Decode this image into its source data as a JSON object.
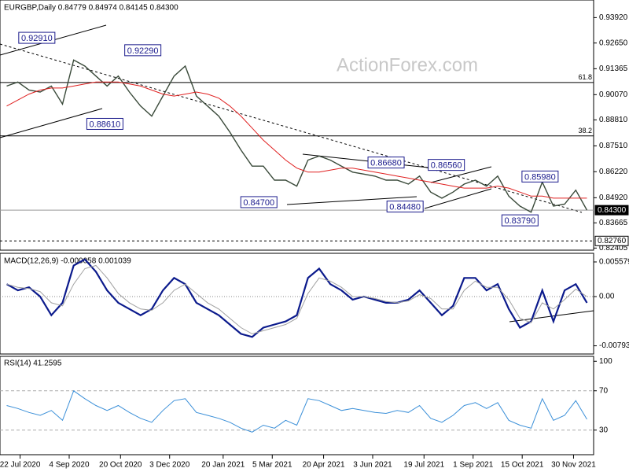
{
  "chart_data": [
    {
      "type": "line",
      "title": "EURGBP,Daily  0.84779 0.84974 0.84145 0.84300",
      "watermark": "ActionForex.com",
      "x": [
        "10 Jul 2020",
        "20 Jul 2020",
        "30 Jul 2020",
        "9 Aug 2020",
        "19 Aug 2020",
        "29 Aug 2020",
        "8 Sep 2020",
        "18 Sep 2020",
        "28 Sep 2020",
        "8 Oct 2020",
        "18 Oct 2020",
        "28 Oct 2020",
        "7 Nov 2020",
        "17 Nov 2020",
        "27 Nov 2020",
        "7 Dec 2020",
        "17 Dec 2020",
        "27 Dec 2020",
        "6 Jan 2021",
        "16 Jan 2021",
        "26 Jan 2021",
        "5 Feb 2021",
        "15 Feb 2021",
        "25 Feb 2021",
        "7 Mar 2021",
        "17 Mar 2021",
        "27 Mar 2021",
        "6 Apr 2021",
        "16 Apr 2021",
        "26 Apr 2021",
        "6 May 2021",
        "16 May 2021",
        "26 May 2021",
        "5 Jun 2021",
        "15 Jun 2021",
        "25 Jun 2021",
        "5 Jul 2021",
        "15 Jul 2021",
        "25 Jul 2021",
        "4 Aug 2021",
        "14 Aug 2021",
        "24 Aug 2021",
        "3 Sep 2021",
        "13 Sep 2021",
        "23 Sep 2021",
        "3 Oct 2021",
        "13 Oct 2021",
        "23 Oct 2021",
        "2 Nov 2021",
        "12 Nov 2021",
        "22 Nov 2021",
        "2 Dec 2021",
        "12 Dec 2021"
      ],
      "series": [
        {
          "name": "EURGBP",
          "color": "#3a4a3a",
          "values": [
            0.905,
            0.907,
            0.903,
            0.902,
            0.905,
            0.896,
            0.918,
            0.915,
            0.91,
            0.905,
            0.91,
            0.902,
            0.895,
            0.89,
            0.9,
            0.91,
            0.915,
            0.9,
            0.895,
            0.89,
            0.882,
            0.873,
            0.865,
            0.865,
            0.858,
            0.858,
            0.855,
            0.868,
            0.87,
            0.868,
            0.865,
            0.862,
            0.861,
            0.86,
            0.858,
            0.858,
            0.856,
            0.86,
            0.852,
            0.849,
            0.852,
            0.856,
            0.858,
            0.855,
            0.86,
            0.85,
            0.845,
            0.842,
            0.857,
            0.845,
            0.846,
            0.853,
            0.843
          ]
        },
        {
          "name": "MA",
          "color": "#e02020",
          "values": [
            0.895,
            0.898,
            0.901,
            0.903,
            0.904,
            0.904,
            0.905,
            0.906,
            0.907,
            0.907,
            0.907,
            0.906,
            0.905,
            0.903,
            0.901,
            0.9,
            0.901,
            0.902,
            0.901,
            0.899,
            0.895,
            0.89,
            0.884,
            0.878,
            0.873,
            0.868,
            0.864,
            0.862,
            0.862,
            0.863,
            0.864,
            0.864,
            0.863,
            0.862,
            0.861,
            0.86,
            0.859,
            0.858,
            0.857,
            0.856,
            0.855,
            0.854,
            0.854,
            0.854,
            0.855,
            0.854,
            0.852,
            0.85,
            0.85,
            0.849,
            0.849,
            0.849,
            0.849
          ]
        }
      ],
      "xlim": [
        "4 Jul 2020",
        "18 Dec 2021"
      ],
      "xticks": [
        "22 Jul 2020",
        "4 Sep 2020",
        "20 Oct 2020",
        "3 Dec 2020",
        "20 Jan 2021",
        "5 Mar 2021",
        "20 Apr 2021",
        "3 Jun 2021",
        "19 Jul 2021",
        "1 Sep 2021",
        "15 Oct 2021",
        "30 Nov 2021"
      ],
      "ylim": [
        0.823,
        0.948
      ],
      "yticks": [
        {
          "value": 0.9392,
          "label": "0.93920"
        },
        {
          "value": 0.9265,
          "label": "0.92650"
        },
        {
          "value": 0.91365,
          "label": "0.91365"
        },
        {
          "value": 0.9007,
          "label": "0.90070"
        },
        {
          "value": 0.8881,
          "label": "0.88810"
        },
        {
          "value": 0.8751,
          "label": "0.87510"
        },
        {
          "value": 0.8622,
          "label": "0.86220"
        },
        {
          "value": 0.8492,
          "label": "0.84920"
        },
        {
          "value": 0.83665,
          "label": "0.83665"
        },
        {
          "value": 0.82405,
          "label": "0.82405"
        }
      ],
      "levels": [
        {
          "value": 0.843,
          "label": "0.84300",
          "style": "current"
        },
        {
          "value": 0.8276,
          "label": "0.82760",
          "style": "support"
        }
      ],
      "fib_levels": [
        {
          "value": 0.9068,
          "label": "61.8"
        },
        {
          "value": 0.8801,
          "label": "38.2"
        }
      ],
      "annotations": [
        {
          "date": "6 Aug 2020",
          "value": 0.9291,
          "label": "0.92910"
        },
        {
          "date": "9 Nov 2020",
          "value": 0.9229,
          "label": "0.92290"
        },
        {
          "date": "6 Oct 2020",
          "value": 0.8861,
          "label": "0.88610"
        },
        {
          "date": "15 Jun 2021",
          "value": 0.8668,
          "label": "0.86680"
        },
        {
          "date": "8 Aug 2021",
          "value": 0.8656,
          "label": "0.86560"
        },
        {
          "date": "21 Feb 2021",
          "value": 0.847,
          "label": "0.84700"
        },
        {
          "date": "2 Jul 2021",
          "value": 0.8448,
          "label": "0.84480"
        },
        {
          "date": "13 Oct 2021",
          "value": 0.8379,
          "label": "0.83790"
        },
        {
          "date": "31 Oct 2021",
          "value": 0.8598,
          "label": "0.85980"
        }
      ]
    },
    {
      "type": "line",
      "title": "MACD(12,26,9) -0.000058 0.001039",
      "series": [
        {
          "name": "MACD",
          "color": "#0b1a8c",
          "values": [
            0.002,
            0.001,
            0.0015,
            0.0,
            -0.003,
            -0.001,
            0.005,
            0.006,
            0.004,
            0.001,
            -0.001,
            -0.002,
            -0.003,
            -0.002,
            0.001,
            0.003,
            0.002,
            -0.001,
            -0.002,
            -0.003,
            -0.0045,
            -0.006,
            -0.0065,
            -0.005,
            -0.0045,
            -0.004,
            -0.003,
            0.003,
            0.0045,
            0.002,
            0.001,
            -0.0005,
            0.0,
            -0.0005,
            -0.001,
            -0.001,
            -0.0005,
            0.001,
            -0.001,
            -0.003,
            -0.0015,
            0.003,
            0.003,
            0.001,
            0.002,
            -0.002,
            -0.005,
            -0.004,
            0.001,
            -0.004,
            0.001,
            0.002,
            -0.001
          ]
        },
        {
          "name": "Signal",
          "color": "#a0a0a0",
          "values": [
            0.002,
            0.0015,
            0.0013,
            0.0008,
            -0.001,
            -0.0015,
            0.002,
            0.0045,
            0.005,
            0.003,
            0.0005,
            -0.001,
            -0.002,
            -0.0022,
            -0.001,
            0.001,
            0.002,
            0.0005,
            -0.001,
            -0.002,
            -0.0035,
            -0.005,
            -0.006,
            -0.0055,
            -0.005,
            -0.0045,
            -0.0035,
            0.0005,
            0.003,
            0.0025,
            0.0015,
            0.0,
            0.0,
            -0.0003,
            -0.0008,
            -0.001,
            -0.0007,
            0.0003,
            -0.0003,
            -0.002,
            -0.002,
            0.001,
            0.0025,
            0.0015,
            0.0015,
            -0.0005,
            -0.0035,
            -0.0042,
            -0.001,
            -0.002,
            -0.0005,
            0.0012,
            0.0
          ]
        }
      ],
      "ylim": [
        -0.00925,
        0.00697
      ],
      "yticks": [
        0.005579,
        {
          "value": 0,
          "label": "0.00"
        },
        -0.007931
      ]
    },
    {
      "type": "line",
      "title": "RSI(14) 41.2595",
      "series": [
        {
          "name": "RSI",
          "color": "#3a8fd8",
          "values": [
            55,
            52,
            48,
            45,
            50,
            40,
            70,
            62,
            55,
            50,
            55,
            48,
            42,
            38,
            50,
            60,
            62,
            48,
            45,
            42,
            38,
            32,
            28,
            35,
            32,
            40,
            35,
            62,
            60,
            55,
            50,
            52,
            50,
            48,
            47,
            50,
            48,
            55,
            42,
            38,
            45,
            55,
            58,
            52,
            58,
            40,
            35,
            32,
            62,
            40,
            45,
            60,
            41
          ]
        }
      ],
      "ylim": [
        5,
        105
      ],
      "yticks": [
        100,
        70,
        30
      ]
    }
  ]
}
